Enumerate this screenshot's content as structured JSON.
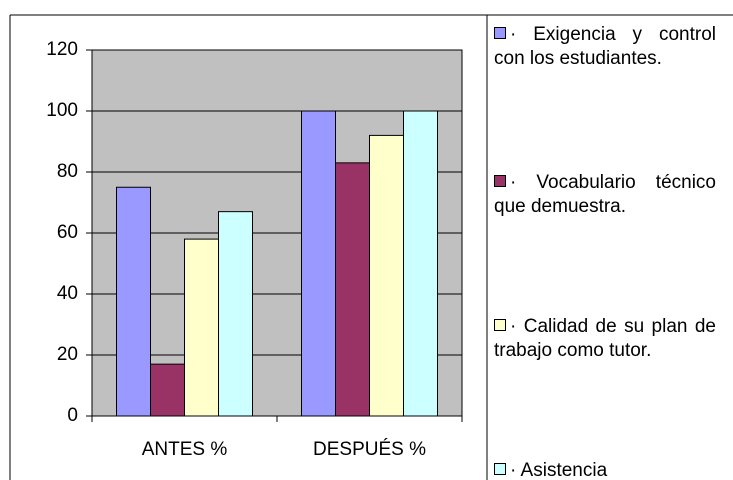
{
  "chart_data": {
    "type": "bar",
    "categories": [
      "ANTES  %",
      "DESPUÉS  %"
    ],
    "series": [
      {
        "name": "· Exigencia y control con los estudiantes.",
        "color": "#9999ff",
        "values": [
          75,
          100
        ]
      },
      {
        "name": "· Vocabulario técnico que demuestra.",
        "color": "#993366",
        "values": [
          17,
          83
        ]
      },
      {
        "name": "· Calidad de su plan de trabajo como tutor.",
        "color": "#ffffcc",
        "values": [
          58,
          92
        ]
      },
      {
        "name": "· Asistencia",
        "color": "#ccffff",
        "values": [
          67,
          100
        ]
      }
    ],
    "ylim": [
      0,
      120
    ],
    "yticks": [
      0,
      20,
      40,
      60,
      80,
      100,
      120
    ],
    "grid": true,
    "legend": "right"
  }
}
